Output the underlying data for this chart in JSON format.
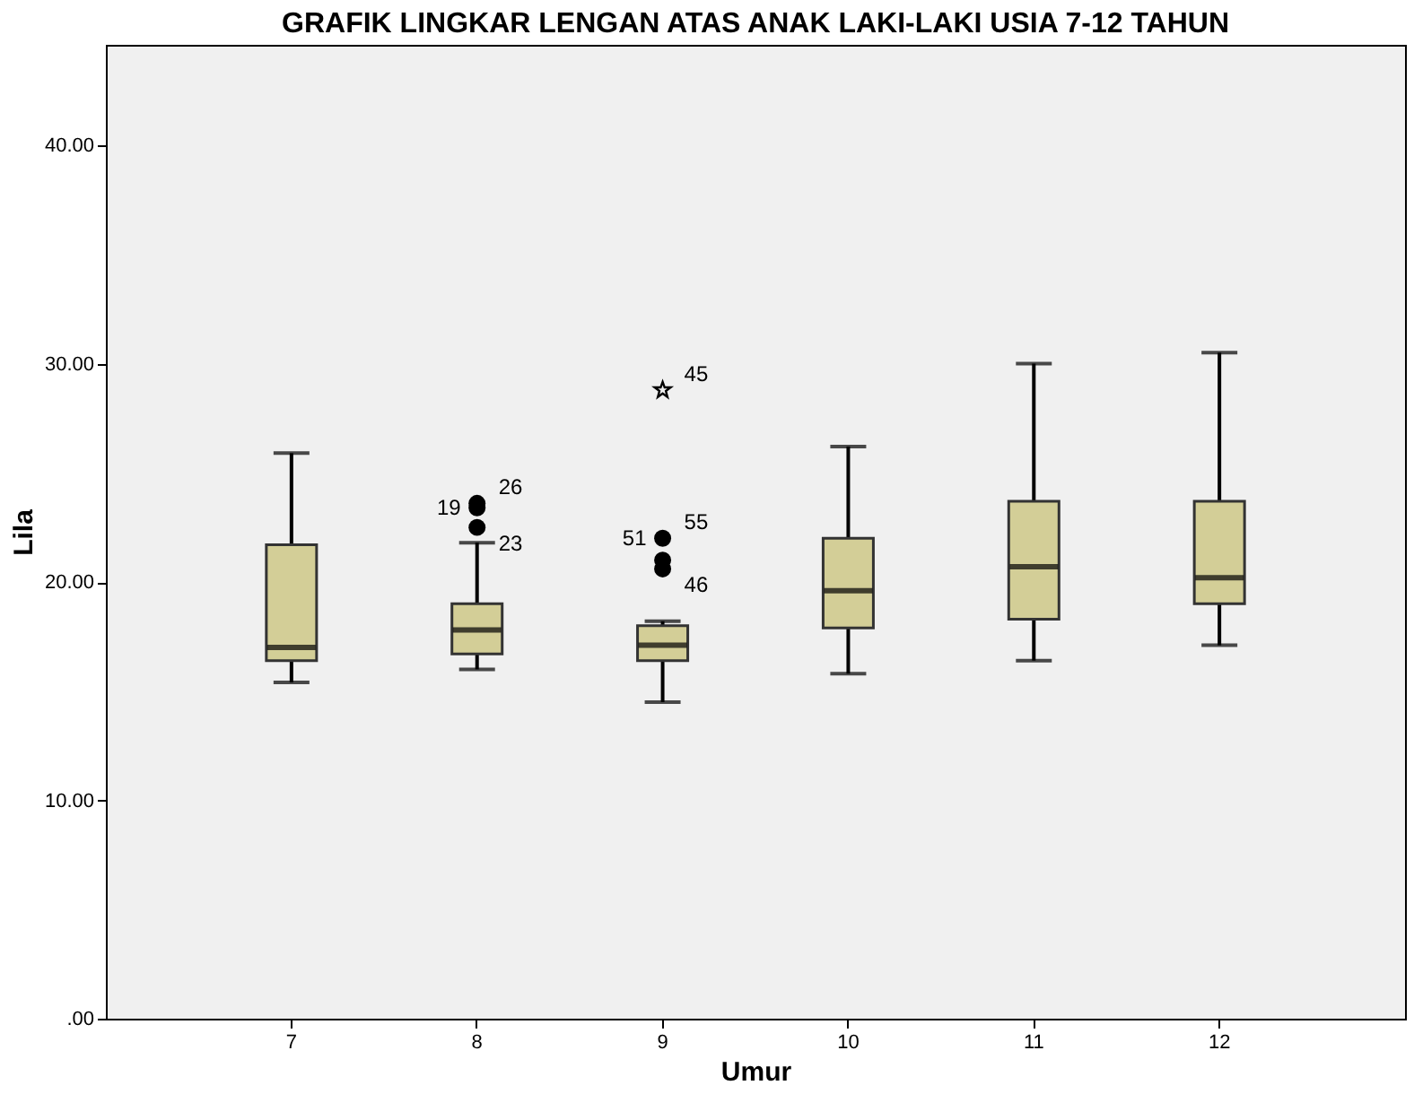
{
  "chart_data": {
    "type": "box",
    "title": "GRAFIK LINGKAR LENGAN ATAS ANAK LAKI-LAKI USIA 7-12 TAHUN",
    "xlabel": "Umur",
    "ylabel": "Lila",
    "categories": [
      "7",
      "8",
      "9",
      "10",
      "11",
      "12"
    ],
    "ylim": [
      0,
      44.6
    ],
    "yticks": [
      {
        "value": 0,
        "label": ".00"
      },
      {
        "value": 10,
        "label": "10.00"
      },
      {
        "value": 20,
        "label": "20.00"
      },
      {
        "value": 30,
        "label": "30.00"
      },
      {
        "value": 40,
        "label": "40.00"
      }
    ],
    "grid": false,
    "series": [
      {
        "color": "#d3ce97",
        "boxes": [
          {
            "low": 15.4,
            "q1": 16.4,
            "median": 17.0,
            "q3": 21.7,
            "high": 25.9
          },
          {
            "low": 16.0,
            "q1": 16.7,
            "median": 17.8,
            "q3": 19.0,
            "high": 21.8
          },
          {
            "low": 14.5,
            "q1": 16.4,
            "median": 17.1,
            "q3": 18.0,
            "high": 18.2
          },
          {
            "low": 15.8,
            "q1": 17.9,
            "median": 19.6,
            "q3": 22.0,
            "high": 26.2
          },
          {
            "low": 16.4,
            "q1": 18.3,
            "median": 20.7,
            "q3": 23.7,
            "high": 30.0
          },
          {
            "low": 17.1,
            "q1": 19.0,
            "median": 20.2,
            "q3": 23.7,
            "high": 30.5
          }
        ]
      },
      {
        "type": "scatter",
        "marker": "circle",
        "color": "#000000",
        "x": [
          "8",
          "8",
          "8",
          "9",
          "9",
          "9"
        ],
        "values": [
          23.6,
          23.4,
          22.5,
          22.0,
          21.0,
          20.6
        ]
      },
      {
        "type": "scatter",
        "marker": "star",
        "color": "#000000",
        "x": [
          "9"
        ],
        "values": [
          28.8
        ]
      }
    ],
    "annotations": [
      {
        "text": "26",
        "x": "8",
        "y": 23.6
      },
      {
        "text": "19",
        "x": "8",
        "y": 23.4
      },
      {
        "text": "23",
        "x": "8",
        "y": 22.5
      },
      {
        "text": "55",
        "x": "9",
        "y": 22.0
      },
      {
        "text": "51",
        "x": "9",
        "y": 22.0
      },
      {
        "text": "46",
        "x": "9",
        "y": 20.6
      },
      {
        "text": "45",
        "x": "9",
        "y": 28.8
      }
    ]
  }
}
